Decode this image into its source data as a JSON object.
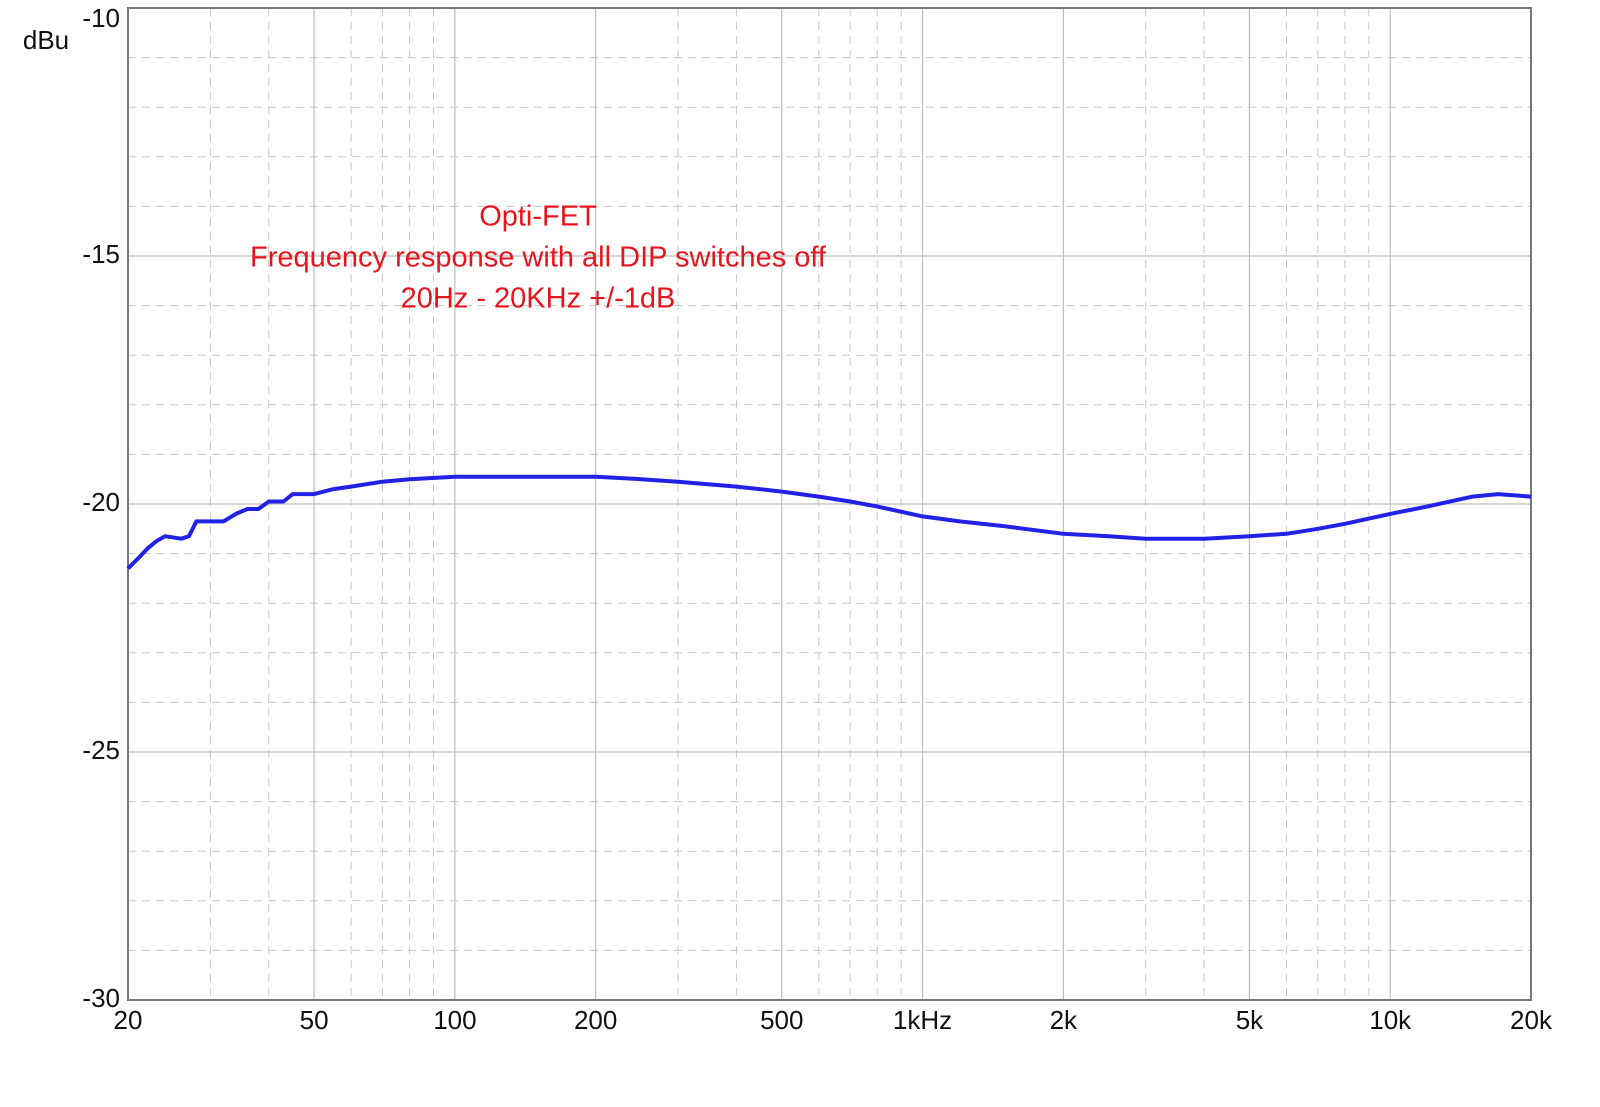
{
  "chart_data": {
    "type": "line",
    "y_label": "dBu",
    "annotation": [
      "Opti-FET",
      "Frequency response with all DIP switches off",
      "20Hz - 20KHz +/-1dB"
    ],
    "annotation_color": "#e8141c",
    "x_log": true,
    "grid": true,
    "xlim": [
      20,
      20000
    ],
    "ylim": [
      -30,
      -10
    ],
    "xticks": [
      20,
      50,
      100,
      200,
      500,
      {
        "value": 1000,
        "label": "1kHz"
      },
      {
        "value": 2000,
        "label": "2k"
      },
      {
        "value": 5000,
        "label": "5k"
      },
      {
        "value": 10000,
        "label": "10k"
      },
      {
        "value": 20000,
        "label": "20k"
      }
    ],
    "yticks": [
      -10,
      -15,
      -20,
      -25,
      -30
    ],
    "x_minor_ticks": [
      30,
      40,
      60,
      70,
      80,
      90,
      300,
      400,
      600,
      700,
      800,
      900,
      3000,
      4000,
      6000,
      7000,
      8000,
      9000
    ],
    "y_minor_ticks": [
      -11,
      -12,
      -13,
      -14,
      -16,
      -17,
      -18,
      -19,
      -21,
      -22,
      -23,
      -24,
      -26,
      -27,
      -28,
      -29
    ],
    "x": [
      20,
      21,
      22,
      23,
      24,
      26,
      27,
      28,
      30,
      32,
      34,
      36,
      38,
      40,
      43,
      45,
      50,
      55,
      60,
      70,
      80,
      100,
      150,
      200,
      250,
      300,
      400,
      500,
      600,
      700,
      800,
      1000,
      1200,
      1500,
      2000,
      2500,
      3000,
      4000,
      5000,
      6000,
      7000,
      8000,
      10000,
      12000,
      15000,
      17000,
      20000
    ],
    "series": [
      {
        "color": "#2222e6",
        "values": [
          -21.3,
          -21.1,
          -20.9,
          -20.75,
          -20.65,
          -20.7,
          -20.65,
          -20.35,
          -20.35,
          -20.35,
          -20.2,
          -20.1,
          -20.1,
          -19.95,
          -19.95,
          -19.8,
          -19.8,
          -19.7,
          -19.65,
          -19.55,
          -19.5,
          -19.45,
          -19.45,
          -19.45,
          -19.5,
          -19.55,
          -19.65,
          -19.75,
          -19.85,
          -19.95,
          -20.05,
          -20.25,
          -20.35,
          -20.45,
          -20.6,
          -20.65,
          -20.7,
          -20.7,
          -20.65,
          -20.6,
          -20.5,
          -20.4,
          -20.2,
          -20.05,
          -19.85,
          -19.8,
          -19.85
        ]
      }
    ]
  }
}
